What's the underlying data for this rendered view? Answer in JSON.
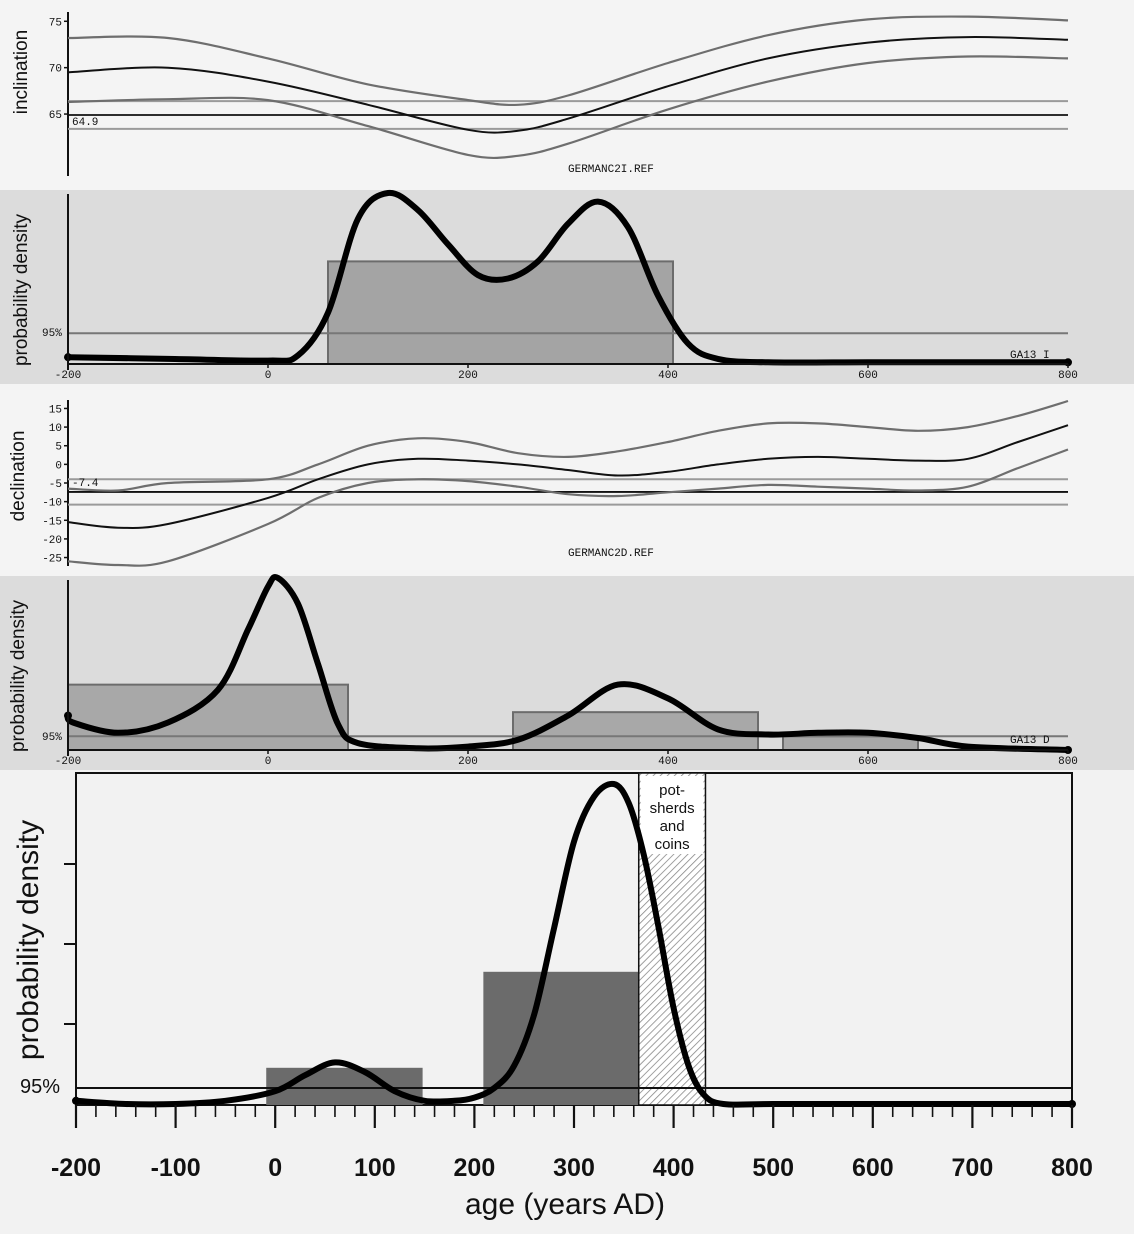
{
  "chart_data": [
    {
      "type": "line",
      "ylabel": "inclination",
      "ref_label": "GERMANC2I.REF",
      "value_label": "64.9",
      "xlim": [
        -200,
        800
      ],
      "ylim": [
        58,
        76
      ],
      "yticks": [
        65,
        70,
        75
      ],
      "reference_value": 64.9,
      "reference_band": [
        63.4,
        66.4
      ],
      "series": [
        {
          "role": "mean",
          "x": [
            -200,
            -100,
            0,
            100,
            200,
            250,
            300,
            400,
            500,
            600,
            700,
            800
          ],
          "y": [
            69.5,
            70.0,
            68.5,
            66.0,
            63.3,
            63.2,
            64.5,
            68.0,
            71.0,
            72.7,
            73.3,
            73.0
          ]
        },
        {
          "role": "upper",
          "x": [
            -200,
            -100,
            0,
            100,
            200,
            250,
            300,
            400,
            500,
            600,
            700,
            800
          ],
          "y": [
            73.2,
            73.2,
            71.0,
            68.2,
            66.5,
            66.0,
            67.0,
            70.5,
            73.5,
            75.2,
            75.5,
            75.1
          ]
        },
        {
          "role": "lower",
          "x": [
            -200,
            -100,
            0,
            100,
            200,
            250,
            300,
            400,
            500,
            600,
            700,
            800
          ],
          "y": [
            66.3,
            66.6,
            66.5,
            63.7,
            60.6,
            60.5,
            61.8,
            65.5,
            68.5,
            70.5,
            71.2,
            71.0
          ]
        }
      ]
    },
    {
      "type": "area",
      "ylabel": "probability density",
      "sample_label": "GA13 I",
      "pct_label": "95%",
      "xticks": [
        -200,
        0,
        200,
        400,
        600,
        800
      ],
      "xlim": [
        -200,
        800
      ],
      "ylim": [
        0,
        1
      ],
      "threshold": 0.18,
      "intervals": [
        {
          "from": 60,
          "to": 405,
          "height": 0.6
        }
      ],
      "curve": {
        "x": [
          -200,
          -100,
          0,
          30,
          60,
          90,
          120,
          150,
          180,
          210,
          240,
          270,
          300,
          330,
          360,
          390,
          420,
          450,
          500,
          600,
          700,
          800
        ],
        "y": [
          0.04,
          0.03,
          0.02,
          0.05,
          0.3,
          0.85,
          1.0,
          0.9,
          0.7,
          0.52,
          0.5,
          0.6,
          0.82,
          0.95,
          0.8,
          0.4,
          0.12,
          0.03,
          0.01,
          0.01,
          0.01,
          0.01
        ]
      }
    },
    {
      "type": "line",
      "ylabel": "declination",
      "ref_label": "GERMANC2D.REF",
      "value_label": "-7.4",
      "xlim": [
        -200,
        800
      ],
      "ylim": [
        -27,
        17
      ],
      "yticks": [
        15,
        10,
        5,
        0,
        -5,
        -10,
        -15,
        -20,
        -25
      ],
      "reference_value": -7.4,
      "reference_band": [
        -10.8,
        -4.0
      ],
      "series": [
        {
          "role": "mean",
          "x": [
            -200,
            -150,
            -100,
            0,
            50,
            100,
            150,
            200,
            250,
            300,
            350,
            400,
            450,
            500,
            550,
            600,
            650,
            700,
            750,
            800
          ],
          "y": [
            -15.5,
            -17,
            -16,
            -9,
            -4,
            0,
            1.5,
            1.0,
            0,
            -1.5,
            -3,
            -2,
            0,
            1.5,
            2,
            1.5,
            1,
            1.5,
            6,
            10.5
          ]
        },
        {
          "role": "upper",
          "x": [
            -200,
            -150,
            -100,
            0,
            50,
            100,
            150,
            200,
            250,
            300,
            350,
            400,
            450,
            500,
            550,
            600,
            650,
            700,
            750,
            800
          ],
          "y": [
            -6.5,
            -7,
            -5,
            -4,
            0,
            5,
            7,
            6,
            3,
            2,
            3.5,
            6,
            9,
            11,
            11,
            10,
            9,
            10,
            13,
            17
          ]
        },
        {
          "role": "lower",
          "x": [
            -200,
            -150,
            -100,
            0,
            50,
            100,
            150,
            200,
            250,
            300,
            350,
            400,
            450,
            500,
            550,
            600,
            650,
            700,
            750,
            800
          ],
          "y": [
            -26,
            -27,
            -26,
            -16,
            -9,
            -5,
            -4,
            -4.5,
            -6,
            -8,
            -8.5,
            -7.5,
            -6.5,
            -5.5,
            -6,
            -6.5,
            -7,
            -6,
            -1,
            4
          ]
        }
      ]
    },
    {
      "type": "area",
      "ylabel": "probability density",
      "sample_label": "GA13 D",
      "pct_label": "95%",
      "xticks": [
        -200,
        0,
        200,
        400,
        600,
        800
      ],
      "xlim": [
        -200,
        800
      ],
      "ylim": [
        0,
        1
      ],
      "threshold": 0.08,
      "intervals": [
        {
          "from": -200,
          "to": 80,
          "height": 0.38
        },
        {
          "from": 245,
          "to": 490,
          "height": 0.22
        },
        {
          "from": 515,
          "to": 650,
          "height": 0.08
        }
      ],
      "curve": {
        "x": [
          -200,
          -195,
          -150,
          -100,
          -50,
          -20,
          0,
          10,
          30,
          50,
          70,
          90,
          150,
          200,
          250,
          300,
          350,
          400,
          450,
          500,
          550,
          600,
          650,
          700,
          800
        ],
        "y": [
          0.2,
          0.16,
          0.1,
          0.16,
          0.35,
          0.7,
          0.95,
          1.0,
          0.85,
          0.5,
          0.15,
          0.04,
          0.01,
          0.02,
          0.06,
          0.2,
          0.38,
          0.3,
          0.12,
          0.09,
          0.1,
          0.1,
          0.07,
          0.02,
          0.0
        ]
      }
    },
    {
      "type": "area",
      "ylabel": "probability density",
      "xlabel": "age (years AD)",
      "pct_label": "95%",
      "annotation": [
        "pot-",
        "sherds",
        "and",
        "coins"
      ],
      "annotation_range": [
        365,
        432
      ],
      "xticks": [
        -200,
        -100,
        0,
        100,
        200,
        300,
        400,
        500,
        600,
        700,
        800
      ],
      "xlim": [
        -200,
        800
      ],
      "ylim": [
        0,
        1
      ],
      "threshold": 0.05,
      "intervals": [
        {
          "from": -8,
          "to": 147,
          "height": 0.11
        },
        {
          "from": 210,
          "to": 424,
          "height": 0.41
        }
      ],
      "curve": {
        "x": [
          -200,
          -150,
          -100,
          -50,
          0,
          30,
          60,
          90,
          120,
          150,
          180,
          200,
          220,
          240,
          260,
          280,
          300,
          320,
          340,
          355,
          370,
          385,
          400,
          415,
          430,
          450,
          500,
          600,
          700,
          800
        ],
        "y": [
          0.01,
          0.0,
          0.0,
          0.01,
          0.04,
          0.09,
          0.13,
          0.1,
          0.04,
          0.01,
          0.01,
          0.02,
          0.05,
          0.12,
          0.28,
          0.55,
          0.82,
          0.96,
          1.0,
          0.94,
          0.78,
          0.55,
          0.3,
          0.12,
          0.03,
          0.0,
          0.0,
          0.0,
          0.0,
          0.0
        ]
      }
    }
  ]
}
